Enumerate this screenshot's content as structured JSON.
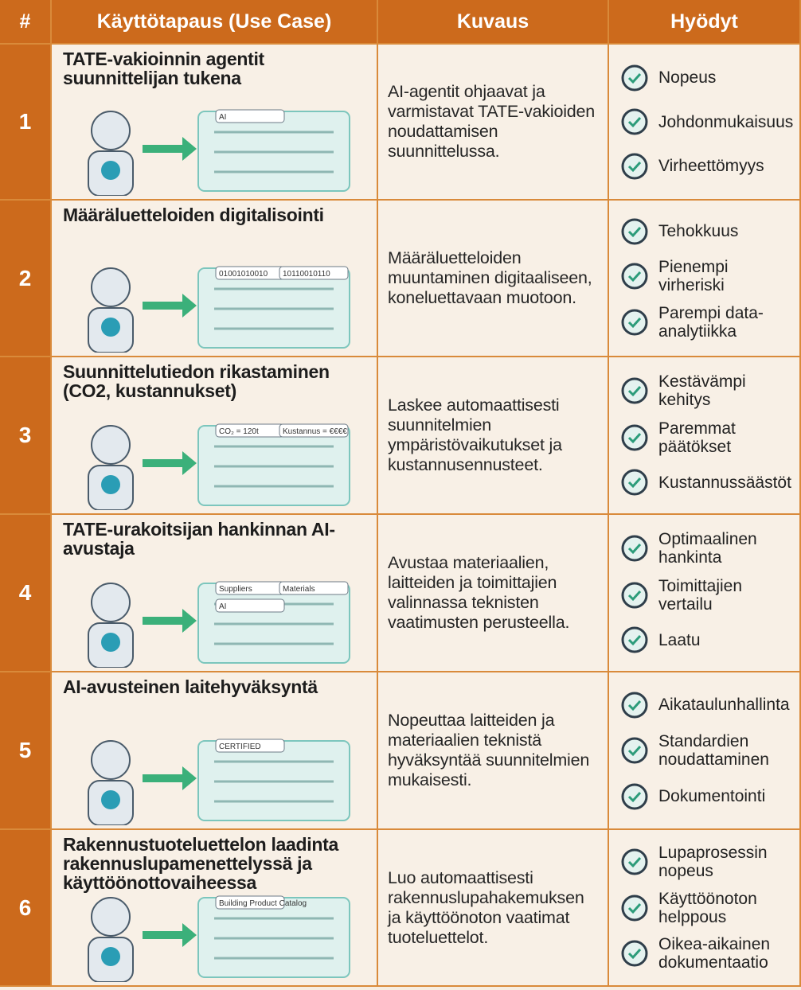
{
  "table": {
    "header": [
      "#",
      "Käyttötapaus (Use Case)",
      "Kuvaus",
      "Hyödyt"
    ],
    "rows": [
      {
        "number": "1",
        "use_case": "TATE-vakioinnin agentit suunnittelijan tukena",
        "description": "AI-agentit ohjaavat ja varmistavat TATE-vakioiden noudattamisen suunnittelussa.",
        "benefits": [
          "Nopeus",
          "Johdonmukaisuus",
          "Virheettömyys"
        ],
        "illustration_labels": [
          "AI"
        ]
      },
      {
        "number": "2",
        "use_case": "Määräluetteloiden digitalisointi",
        "description": "Määräluetteloiden muuntaminen digitaaliseen, koneluettavaan muotoon.",
        "benefits": [
          "Tehokkuus",
          "Pienempi virheriski",
          "Parempi data-analytiikka"
        ],
        "illustration_labels": [
          "01001010010",
          "10110010110"
        ]
      },
      {
        "number": "3",
        "use_case": "Suunnittelutiedon rikastaminen (CO2, kustannukset)",
        "description": "Laskee automaattisesti suunnitelmien ympäristövaikutukset ja kustannusennusteet.",
        "benefits": [
          "Kestävämpi kehitys",
          "Paremmat päätökset",
          "Kustannussäästöt"
        ],
        "illustration_labels": [
          "CO₂ = 120t",
          "Kustannus = €€€€"
        ]
      },
      {
        "number": "4",
        "use_case": "TATE-urakoitsijan hankinnan AI-avustaja",
        "description": "Avustaa materiaalien, laitteiden ja toimittajien valinnassa teknisten vaatimusten perusteella.",
        "benefits": [
          "Optimaalinen hankinta",
          "Toimittajien vertailu",
          "Laatu"
        ],
        "illustration_labels": [
          "Suppliers",
          "Materials",
          "AI"
        ]
      },
      {
        "number": "5",
        "use_case": "AI-avusteinen laitehyväksyntä",
        "description": "Nopeuttaa laitteiden ja materiaalien teknistä hyväksyntää suunnitelmien mukaisesti.",
        "benefits": [
          "Aikataulunhallinta",
          "Standardien noudattaminen",
          "Dokumentointi"
        ],
        "illustration_labels": [
          "CERTIFIED"
        ]
      },
      {
        "number": "6",
        "use_case": "Rakennustuoteluettelon laadinta rakennuslupamenettelyssä ja käyttöönottovaiheessa",
        "description": "Luo automaattisesti rakennuslupahakemuksen ja käyttöönoton vaatimat tuoteluettelot.",
        "benefits": [
          "Lupaprosessin nopeus",
          "Käyttöönoton helppous",
          "Oikea-aikainen dokumentaatio"
        ],
        "illustration_labels": [
          "Building Product Catalog"
        ]
      }
    ]
  }
}
